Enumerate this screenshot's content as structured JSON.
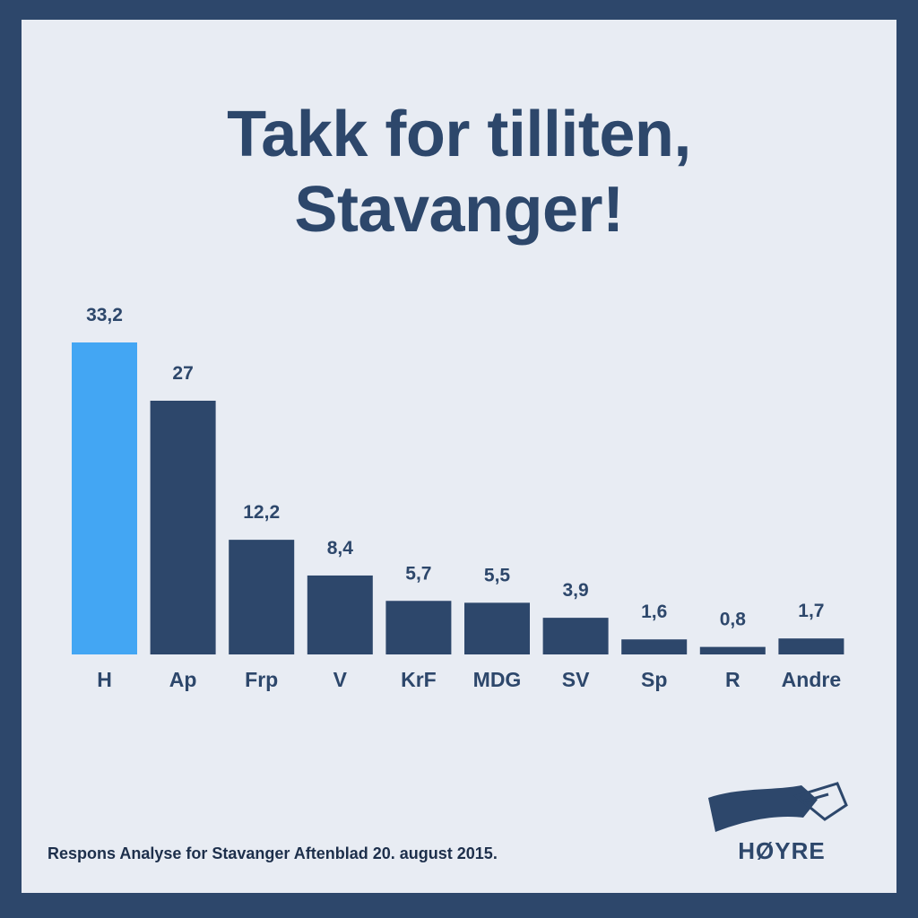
{
  "title_line1": "Takk for tilliten,",
  "title_line2": "Stavanger!",
  "source": "Respons Analyse for Stavanger Aftenblad 20. august 2015.",
  "logo_text": "HØYRE",
  "colors": {
    "frame": "#2d476b",
    "background": "#e8ecf3",
    "bar_default": "#2d476b",
    "bar_highlight": "#43a6f3"
  },
  "chart_data": {
    "type": "bar",
    "categories": [
      "H",
      "Ap",
      "Frp",
      "V",
      "KrF",
      "MDG",
      "SV",
      "Sp",
      "R",
      "Andre"
    ],
    "values": [
      33.2,
      27,
      12.2,
      8.4,
      5.7,
      5.5,
      3.9,
      1.6,
      0.8,
      1.7
    ],
    "value_labels": [
      "33,2",
      "27",
      "12,2",
      "8,4",
      "5,7",
      "5,5",
      "3,9",
      "1,6",
      "0,8",
      "1,7"
    ],
    "highlight": "H",
    "ylim": [
      0,
      33.2
    ],
    "grid": false,
    "legend": "none"
  }
}
